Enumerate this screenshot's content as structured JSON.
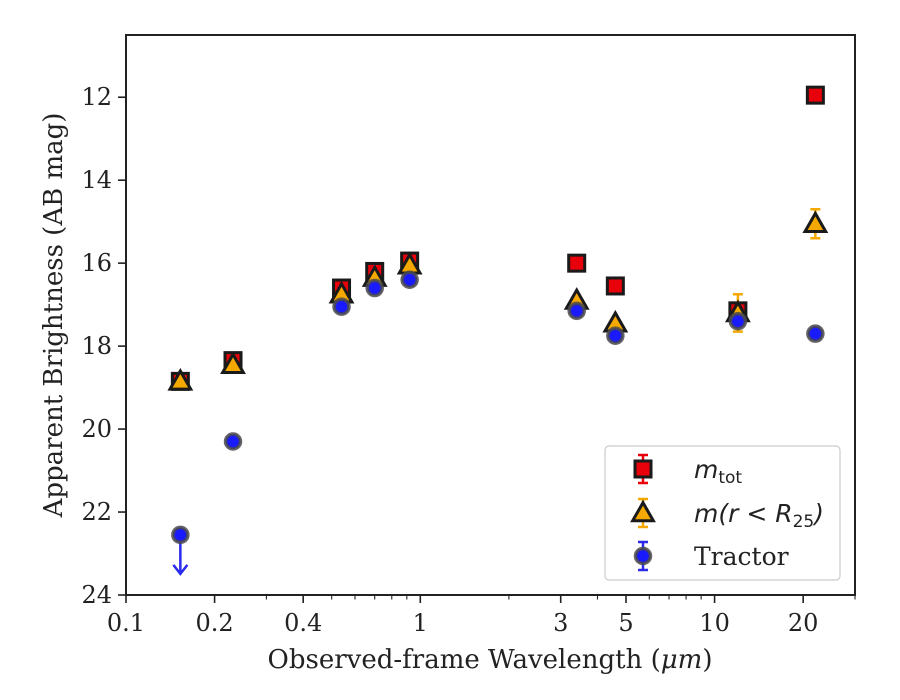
{
  "chart_data": {
    "type": "scatter",
    "xscale": "log",
    "xlim": [
      0.1,
      30
    ],
    "ylim": [
      24,
      10.5
    ],
    "y_inverted": true,
    "xlabel_prefix": "Observed-frame Wavelength (",
    "xlabel_unit": "μm",
    "xlabel_suffix": ")",
    "ylabel": "Apparent Brightness (AB mag)",
    "x_ticks": [
      0.1,
      0.2,
      0.4,
      1,
      3,
      5,
      10,
      20
    ],
    "x_tick_labels": [
      "0.1",
      "0.2",
      "0.4",
      "1",
      "3",
      "5",
      "10",
      "20"
    ],
    "y_ticks": [
      12,
      14,
      16,
      18,
      20,
      22,
      24
    ],
    "y_tick_labels": [
      "12",
      "14",
      "16",
      "18",
      "20",
      "22",
      "24"
    ],
    "legend_position": "lower-right",
    "series": [
      {
        "name": "m_tot",
        "legend_math": "m",
        "legend_sub": "tot",
        "marker": "square",
        "color": "#e8000b",
        "error_color": "#e8000b",
        "edge_color": "#1a1a1a",
        "points": [
          {
            "x": 0.153,
            "y": 18.85,
            "err": 0.1
          },
          {
            "x": 0.231,
            "y": 18.35,
            "err": 0.1
          },
          {
            "x": 0.54,
            "y": 16.6,
            "err": 0.1
          },
          {
            "x": 0.7,
            "y": 16.2,
            "err": 0.1
          },
          {
            "x": 0.92,
            "y": 15.95,
            "err": 0.1
          },
          {
            "x": 3.4,
            "y": 16.0,
            "err": 0.05
          },
          {
            "x": 4.6,
            "y": 16.55,
            "err": 0.05
          },
          {
            "x": 12.0,
            "y": 17.15,
            "err": 0.15
          },
          {
            "x": 22.0,
            "y": 11.95,
            "err": 0.05
          }
        ]
      },
      {
        "name": "m(r < R25)",
        "legend_math": "m(r < R",
        "legend_sub": "25",
        "legend_tail": ")",
        "marker": "triangle",
        "color": "#f5a800",
        "error_color": "#f5a800",
        "edge_color": "#1a1a1a",
        "points": [
          {
            "x": 0.153,
            "y": 18.85,
            "err": 0.1
          },
          {
            "x": 0.231,
            "y": 18.45,
            "err": 0.1
          },
          {
            "x": 0.54,
            "y": 16.75,
            "err": 0.1
          },
          {
            "x": 0.7,
            "y": 16.35,
            "err": 0.1
          },
          {
            "x": 0.92,
            "y": 16.05,
            "err": 0.1
          },
          {
            "x": 3.4,
            "y": 16.9,
            "err": 0.05
          },
          {
            "x": 4.6,
            "y": 17.45,
            "err": 0.05
          },
          {
            "x": 12.0,
            "y": 17.2,
            "err": 0.45
          },
          {
            "x": 22.0,
            "y": 15.05,
            "err": 0.35
          }
        ]
      },
      {
        "name": "Tractor",
        "marker": "circle",
        "color": "#1a1aff",
        "error_color": "#2a2aee",
        "edge_color": "#4a4a4a",
        "points": [
          {
            "x": 0.153,
            "y": 22.55,
            "err": 0.05,
            "upper_limit": true
          },
          {
            "x": 0.231,
            "y": 20.3,
            "err": 0.05
          },
          {
            "x": 0.54,
            "y": 17.05,
            "err": 0.05
          },
          {
            "x": 0.7,
            "y": 16.6,
            "err": 0.05
          },
          {
            "x": 0.92,
            "y": 16.4,
            "err": 0.05
          },
          {
            "x": 3.4,
            "y": 17.15,
            "err": 0.05
          },
          {
            "x": 4.6,
            "y": 17.75,
            "err": 0.05
          },
          {
            "x": 12.0,
            "y": 17.4,
            "err": 0.1
          },
          {
            "x": 22.0,
            "y": 17.7,
            "err": 0.05
          }
        ]
      }
    ]
  }
}
